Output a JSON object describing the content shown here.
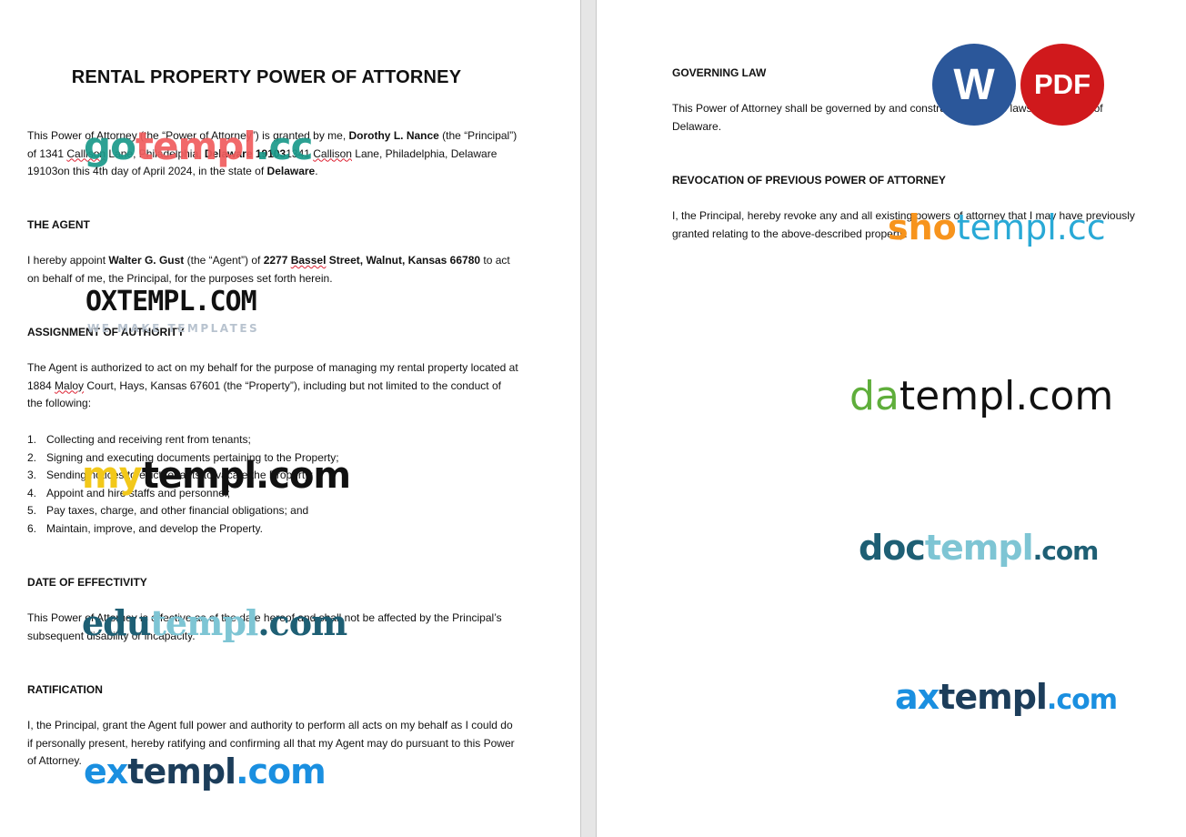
{
  "left_page": {
    "title": "RENTAL PROPERTY POWER OF ATTORNEY",
    "intro": {
      "t1": "This Power of Attorney (the “Power of Attorney”) is granted by me, ",
      "principal_name": "Dorothy L. Nance",
      "t2": " (the “Principal”) of 1341 ",
      "callison1": "Callison",
      "t3": " Lane, Philadelphia, ",
      "principal_state_zip": "Delaware 19103",
      "t4": "1341 ",
      "callison2": "Callison",
      "t5": " Lane, Philadelphia, Delaware 19103on this 4th day of April 2024, in the state of ",
      "state": "Delaware",
      "t6": "."
    },
    "agent": {
      "heading": "THE AGENT",
      "t1": "I hereby appoint ",
      "agent_name": "Walter G. Gust",
      "t2": " (the “Agent”) of ",
      "address_num": "2277 ",
      "address_street_word": "Bassel",
      "address_rest": " Street, Walnut, Kansas 66780",
      "t3": " to act on behalf of me, the Principal, for the purposes set forth herein."
    },
    "assignment": {
      "heading": "ASSIGNMENT OF AUTHORITY",
      "t1": "The Agent is authorized to act on my behalf for the purpose of managing my rental property located at 1884 ",
      "maloy": "Maloy",
      "t2": " Court, Hays, Kansas 67601 (the “Property”), including but not limited to the conduct of the following:",
      "items": [
        {
          "num": "1.",
          "text": "Collecting and receiving rent from tenants;"
        },
        {
          "num": "2.",
          "text": "Signing and executing documents pertaining to the Property;"
        },
        {
          "num": "3.",
          "text": "Sending notices to evict tenants to vacate the Property;"
        },
        {
          "num": "4.",
          "text": "Appoint and hire staffs and personnel;"
        },
        {
          "num": "5.",
          "text": "Pay taxes, charge, and other financial obligations; and"
        },
        {
          "num": "6.",
          "text": "Maintain, improve, and develop the Property."
        }
      ]
    },
    "effectivity": {
      "heading": "DATE OF EFFECTIVITY",
      "text": "This Power of Attorney is effective as of the date hereof and shall not be affected by the Principal’s subsequent disability or incapacity."
    },
    "ratification": {
      "heading": "RATIFICATION",
      "text": "I, the Principal, grant the Agent full power and authority to perform all acts on my behalf as I could do if personally present, hereby ratifying and confirming all that my Agent may do pursuant to this Power of Attorney."
    }
  },
  "right_page": {
    "governing": {
      "heading": "GOVERNING LAW",
      "text": "This Power of Attorney shall be governed by and construed under the laws of the State of Delaware."
    },
    "revocation": {
      "heading": "REVOCATION OF PREVIOUS POWER OF ATTORNEY",
      "text": "I, the Principal, hereby revoke any and all existing powers of attorney that I may have previously granted relating to the above-described property."
    }
  },
  "badges": {
    "word": "W",
    "pdf": "PDF",
    "word_color": "#2b579a",
    "pdf_color": "#d0191c"
  },
  "watermarks": {
    "gotempl": {
      "a": "go",
      "b": "templ",
      "c": ".cc"
    },
    "oxtempl": {
      "main": "OXTEMPL.COM",
      "sub": "WE MAKE TEMPLATES"
    },
    "mytempl": {
      "a": "my",
      "b": "templ.com"
    },
    "edutempl": {
      "a": "edu",
      "b": "templ",
      "c": ".com"
    },
    "extempl": {
      "a": "ex",
      "b": "templ",
      "c": ".com"
    },
    "shotempl": {
      "a": "sho",
      "b": "templ.cc"
    },
    "datempl": {
      "a": "da",
      "b": "templ.com"
    },
    "doctempl": {
      "a": "doc",
      "b": "templ",
      "c": ".com"
    },
    "axtempl": {
      "a": "ax",
      "b": "templ",
      "c": ".com"
    }
  }
}
